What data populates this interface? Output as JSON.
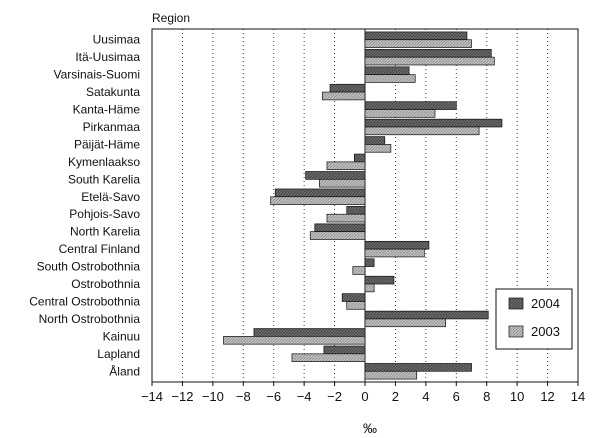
{
  "chart_data": {
    "type": "bar",
    "orientation": "horizontal",
    "title": "Region",
    "xlabel": "‰",
    "ylabel": "",
    "xlim": [
      -14,
      14
    ],
    "xticks": [
      -14,
      -12,
      -10,
      -8,
      -6,
      -4,
      -2,
      0,
      2,
      4,
      6,
      8,
      10,
      12,
      14
    ],
    "xtick_labels": [
      "−14",
      "−12",
      "−10",
      "−8",
      "−6",
      "−4",
      "−2",
      "0",
      "2",
      "4",
      "6",
      "8",
      "10",
      "12",
      "14"
    ],
    "grid": "vertical dotted",
    "legend_position": "bottom-right",
    "categories": [
      "Uusimaa",
      "Itä-Uusimaa",
      "Varsinais-Suomi",
      "Satakunta",
      "Kanta-Häme",
      "Pirkanmaa",
      "Päijät-Häme",
      "Kymenlaakso",
      "South Karelia",
      "Etelä-Savo",
      "Pohjois-Savo",
      "North Karelia",
      "Central Finland",
      "South Ostrobothnia",
      "Ostrobothnia",
      "Central Ostrobothnia",
      "North Ostrobothnia",
      "Kainuu",
      "Lapland",
      "Åland"
    ],
    "series": [
      {
        "name": "2004",
        "color": "#555555",
        "values": [
          6.7,
          8.3,
          2.9,
          -2.3,
          6.0,
          9.0,
          1.3,
          -0.7,
          -3.9,
          -5.9,
          -1.2,
          -3.3,
          4.2,
          0.6,
          1.9,
          -1.5,
          8.1,
          -7.3,
          -2.7,
          7.0
        ]
      },
      {
        "name": "2003",
        "color": "#b8b8b8",
        "values": [
          7.0,
          8.5,
          3.3,
          -2.8,
          4.6,
          7.5,
          1.7,
          -2.5,
          -3.0,
          -6.2,
          -2.5,
          -3.6,
          3.9,
          -0.8,
          0.6,
          -1.2,
          5.3,
          -9.3,
          -4.8,
          3.4
        ]
      }
    ]
  }
}
